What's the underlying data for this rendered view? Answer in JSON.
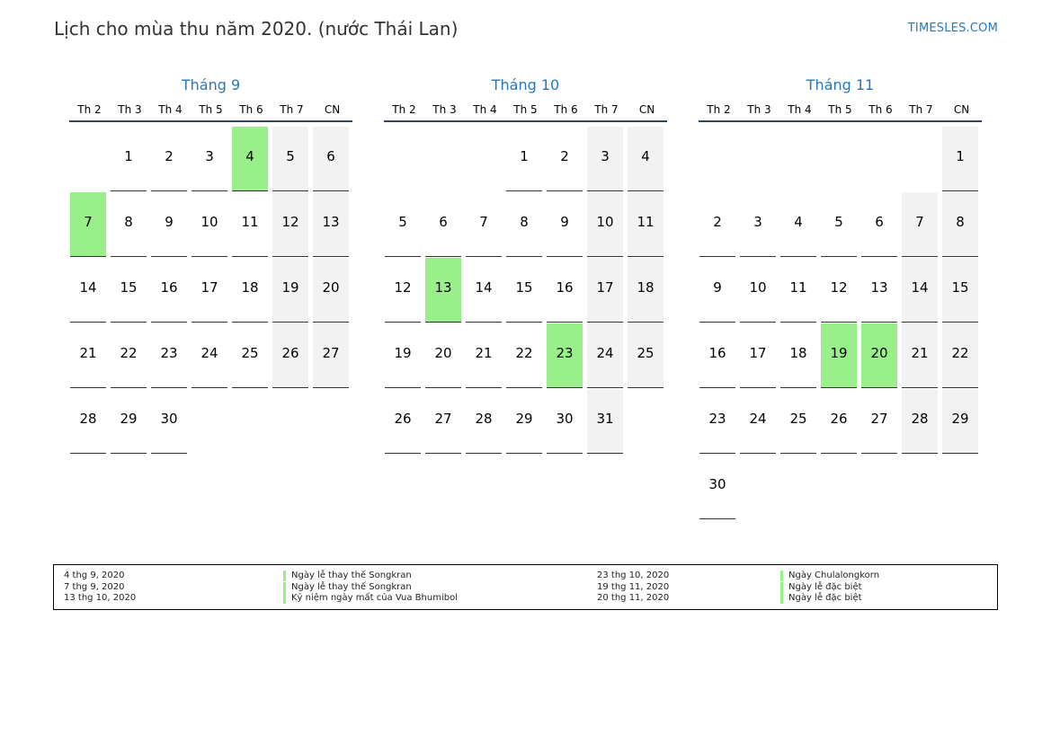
{
  "title": "Lịch cho mùa thu năm 2020. (nước Thái Lan)",
  "brand": "TIMESLES.COM",
  "colors": {
    "accent": "#2a77b8",
    "holiday": "#99f08a",
    "weekend": "#f2f2f2",
    "rule": "#33455c"
  },
  "weekdays": [
    "Th 2",
    "Th 3",
    "Th 4",
    "Th 5",
    "Th 6",
    "Th 7",
    "CN"
  ],
  "months": [
    {
      "name": "Tháng 9",
      "weeks": [
        [
          "",
          "1",
          "2",
          "3",
          "4",
          "5",
          "6"
        ],
        [
          "7",
          "8",
          "9",
          "10",
          "11",
          "12",
          "13"
        ],
        [
          "14",
          "15",
          "16",
          "17",
          "18",
          "19",
          "20"
        ],
        [
          "21",
          "22",
          "23",
          "24",
          "25",
          "26",
          "27"
        ],
        [
          "28",
          "29",
          "30",
          "",
          "",
          "",
          ""
        ]
      ],
      "holidays": [
        "4",
        "7"
      ]
    },
    {
      "name": "Tháng 10",
      "weeks": [
        [
          "",
          "",
          "",
          "1",
          "2",
          "3",
          "4"
        ],
        [
          "5",
          "6",
          "7",
          "8",
          "9",
          "10",
          "11"
        ],
        [
          "12",
          "13",
          "14",
          "15",
          "16",
          "17",
          "18"
        ],
        [
          "19",
          "20",
          "21",
          "22",
          "23",
          "24",
          "25"
        ],
        [
          "26",
          "27",
          "28",
          "29",
          "30",
          "31",
          ""
        ]
      ],
      "holidays": [
        "13",
        "23"
      ]
    },
    {
      "name": "Tháng 11",
      "weeks": [
        [
          "",
          "",
          "",
          "",
          "",
          "",
          "1"
        ],
        [
          "2",
          "3",
          "4",
          "5",
          "6",
          "7",
          "8"
        ],
        [
          "9",
          "10",
          "11",
          "12",
          "13",
          "14",
          "15"
        ],
        [
          "16",
          "17",
          "18",
          "19",
          "20",
          "21",
          "22"
        ],
        [
          "23",
          "24",
          "25",
          "26",
          "27",
          "28",
          "29"
        ],
        [
          "30",
          "",
          "",
          "",
          "",
          "",
          ""
        ]
      ],
      "holidays": [
        "19",
        "20"
      ]
    }
  ],
  "legend": [
    {
      "date": "4 thg 9, 2020",
      "name": "Ngày lễ thay thế Songkran"
    },
    {
      "date": "7 thg 9, 2020",
      "name": "Ngày lễ thay thế Songkran"
    },
    {
      "date": "13 thg 10, 2020",
      "name": "Kỷ niệm ngày mất của Vua Bhumibol"
    },
    {
      "date": "23 thg 10, 2020",
      "name": "Ngày Chulalongkorn"
    },
    {
      "date": "19 thg 11, 2020",
      "name": "Ngày lễ đặc biệt"
    },
    {
      "date": "20 thg 11, 2020",
      "name": "Ngày lễ đặc biệt"
    }
  ]
}
